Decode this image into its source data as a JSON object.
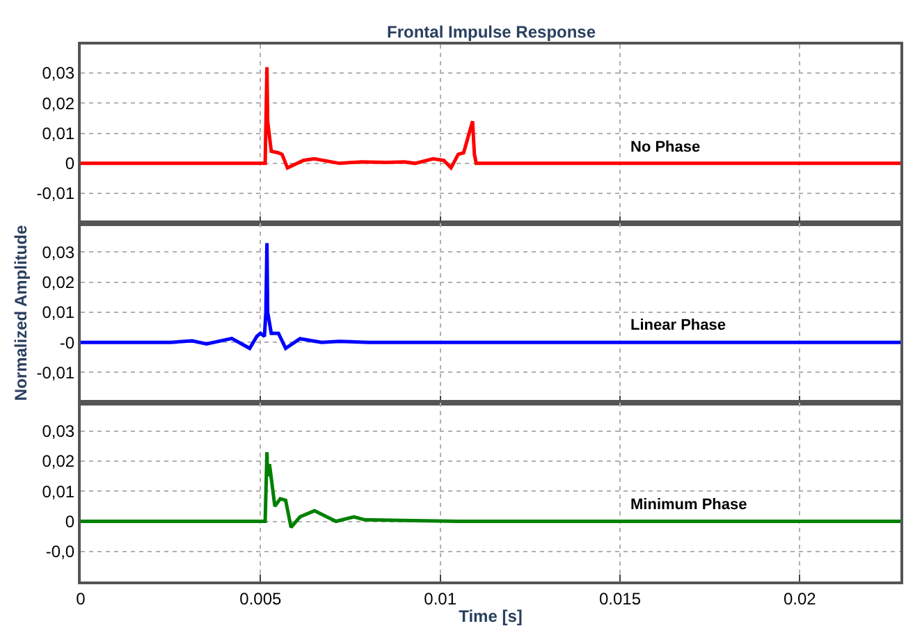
{
  "chart_data": [
    {
      "type": "line",
      "title": "Frontal Impulse Response",
      "xlim": [
        0,
        0.0228
      ],
      "xticks": [
        0,
        0.005,
        0.01,
        0.015,
        0.02
      ],
      "ylim": [
        -0.02,
        0.0395
      ],
      "yticks": [
        {
          "value": 0.03,
          "label": "0,03"
        },
        {
          "value": 0.02,
          "label": "0,02"
        },
        {
          "value": 0.01,
          "label": "0,01"
        },
        0,
        {
          "value": -0.01,
          "label": "-0,01"
        }
      ],
      "grid": true,
      "tick_labels": "y",
      "line_style": "solid",
      "series": [
        {
          "name": "No Phase",
          "color": "#ff0000",
          "x": [
            0,
            0.00513,
            0.00518,
            0.0052,
            0.0053,
            0.0055,
            0.0056,
            0.00575,
            0.0062,
            0.0065,
            0.0072,
            0.0078,
            0.0085,
            0.009,
            0.0093,
            0.0098,
            0.0101,
            0.0103,
            0.0105,
            0.01065,
            0.0109,
            0.01095,
            0.011,
            0.0228
          ],
          "values": [
            0,
            0,
            0.032,
            0.014,
            0.004,
            0.0035,
            0.003,
            -0.0015,
            0.001,
            0.0015,
            0,
            0.0005,
            0.0003,
            0.0005,
            0,
            0.0015,
            0.001,
            -0.0015,
            0.003,
            0.0035,
            0.014,
            0.003,
            0,
            0
          ]
        }
      ]
    },
    {
      "type": "line",
      "ylabel": "Normalized Amplitude",
      "xlim": [
        0,
        0.0228
      ],
      "xticks": [
        0,
        0.005,
        0.01,
        0.015,
        0.02
      ],
      "ylim": [
        -0.02,
        0.0395
      ],
      "yticks": [
        {
          "value": 0.03,
          "label": "0,03"
        },
        {
          "value": 0.02,
          "label": "0,02"
        },
        {
          "value": 0.01,
          "label": "0,01"
        },
        {
          "value": 0,
          "label": "-0"
        },
        {
          "value": -0.01,
          "label": "-0,01"
        }
      ],
      "grid": true,
      "tick_labels": "y",
      "line_style": "solid",
      "series": [
        {
          "name": "Linear Phase",
          "color": "#0000ff",
          "x": [
            0,
            0.0025,
            0.0031,
            0.0035,
            0.0042,
            0.0047,
            0.0049,
            0.005,
            0.00511,
            0.00515,
            0.00518,
            0.0052,
            0.0053,
            0.0055,
            0.0057,
            0.0061,
            0.0067,
            0.0072,
            0.008,
            0.0228
          ],
          "values": [
            0,
            0,
            0.0005,
            -0.0005,
            0.0013,
            -0.002,
            0.002,
            0.003,
            0.002,
            0.01,
            0.033,
            0.01,
            0.003,
            0.003,
            -0.002,
            0.0012,
            0,
            0.0003,
            0,
            0
          ]
        }
      ]
    },
    {
      "type": "line",
      "xlabel": "Time [s]",
      "xlim": [
        0,
        0.0228
      ],
      "xticks": [
        0,
        0.005,
        0.01,
        0.015,
        0.02
      ],
      "ylim": [
        -0.02,
        0.0395
      ],
      "yticks": [
        {
          "value": 0.03,
          "label": "0,03"
        },
        {
          "value": 0.02,
          "label": "0,02"
        },
        {
          "value": 0.01,
          "label": "0,01"
        },
        0,
        {
          "value": -0.01,
          "label": "-0,0"
        }
      ],
      "grid": true,
      "line_style": "solid",
      "series": [
        {
          "name": "Minimum Phase",
          "color": "#008000",
          "x": [
            0,
            0.00513,
            0.00518,
            0.0052,
            0.00525,
            0.0054,
            0.00555,
            0.0057,
            0.00585,
            0.0061,
            0.0065,
            0.0071,
            0.0076,
            0.0079,
            0.009,
            0.0105,
            0.0228
          ],
          "values": [
            0,
            0,
            0.023,
            0.015,
            0.019,
            0.005,
            0.0075,
            0.007,
            -0.002,
            0.0015,
            0.0035,
            0,
            0.0015,
            0.0005,
            0.0003,
            0,
            0
          ]
        }
      ]
    }
  ]
}
